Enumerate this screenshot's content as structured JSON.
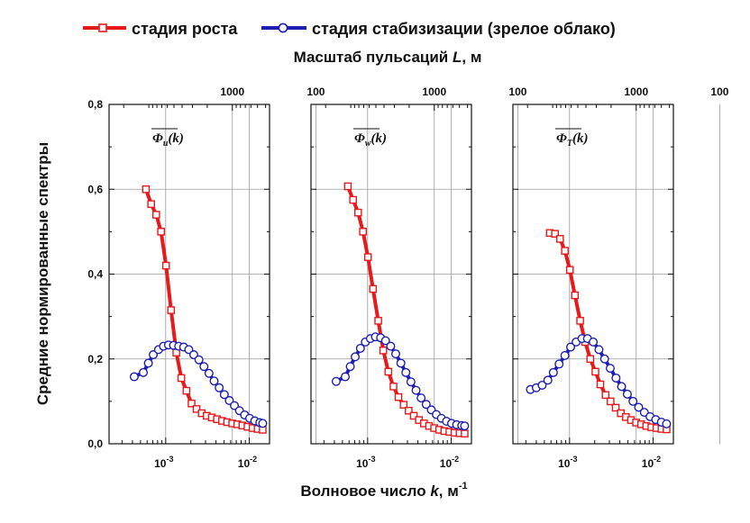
{
  "legend": [
    {
      "label": "стадия роста",
      "color": "#e8191b",
      "marker": "square"
    },
    {
      "label": "стадия стабизизации (зрелое облако)",
      "color": "#1f1fb4",
      "marker": "circle"
    }
  ],
  "top_axis_title": {
    "prefix": "Масштаб пульсаций ",
    "symbol": "L",
    "suffix": ", м"
  },
  "bottom_axis_title": {
    "prefix": "Волновое число ",
    "symbol": "k",
    "suffix": ", м",
    "sup": "-1"
  },
  "y_axis_title": "Средние нормированные спектры",
  "y_tick_labels": [
    "0,0",
    "0,2",
    "0,4",
    "0,6",
    "0,8"
  ],
  "top_tick_labels": [
    "1000",
    "100"
  ],
  "bottom_tick_labels": [
    {
      "base": "10",
      "exp": "-3"
    },
    {
      "base": "10",
      "exp": "-2"
    }
  ],
  "chart_data": [
    {
      "type": "line",
      "label": {
        "symbol": "Φ",
        "sub": "u",
        "arg": "(k)"
      },
      "xscale": "log",
      "xlim": [
        0.00021,
        0.0175
      ],
      "ylim": [
        0,
        0.8
      ],
      "grid": true,
      "series": [
        {
          "name": "стадия роста",
          "color": "#e8191b",
          "x": [
            0.00058,
            0.00067,
            0.00077,
            0.00088,
            0.00101,
            0.00116,
            0.00134,
            0.00154,
            0.00177,
            0.00204,
            0.00234,
            0.0027,
            0.0031,
            0.00357,
            0.00411,
            0.00473,
            0.00544,
            0.00626,
            0.0072,
            0.00828,
            0.00953,
            0.01096,
            0.01261,
            0.0145
          ],
          "y": [
            0.6,
            0.565,
            0.54,
            0.5,
            0.42,
            0.315,
            0.215,
            0.155,
            0.125,
            0.095,
            0.082,
            0.072,
            0.066,
            0.062,
            0.058,
            0.054,
            0.051,
            0.048,
            0.046,
            0.043,
            0.04,
            0.037,
            0.035,
            0.033
          ]
        },
        {
          "name": "стадия стабизизации (зрелое облако)",
          "color": "#1f1fb4",
          "x": [
            0.00042,
            0.00054,
            0.00062,
            0.00071,
            0.00082,
            0.00094,
            0.00108,
            0.00124,
            0.00143,
            0.00164,
            0.00189,
            0.00217,
            0.0025,
            0.00287,
            0.0033,
            0.0038,
            0.00437,
            0.00503,
            0.00578,
            0.00665,
            0.00765,
            0.0088,
            0.01012,
            0.01164,
            0.01339,
            0.0145
          ],
          "y": [
            0.158,
            0.168,
            0.19,
            0.21,
            0.222,
            0.23,
            0.233,
            0.232,
            0.23,
            0.228,
            0.222,
            0.21,
            0.198,
            0.182,
            0.166,
            0.148,
            0.132,
            0.116,
            0.102,
            0.09,
            0.078,
            0.068,
            0.06,
            0.054,
            0.05,
            0.048
          ]
        }
      ]
    },
    {
      "type": "line",
      "label": {
        "symbol": "Φ",
        "sub": "w",
        "arg": "(k)"
      },
      "xscale": "log",
      "xlim": [
        0.00021,
        0.0175
      ],
      "ylim": [
        0,
        0.8
      ],
      "grid": true,
      "series": [
        {
          "name": "стадия роста",
          "color": "#e8191b",
          "x": [
            0.00058,
            0.00067,
            0.00077,
            0.00088,
            0.00101,
            0.00116,
            0.00134,
            0.00154,
            0.00177,
            0.00204,
            0.00234,
            0.0027,
            0.0031,
            0.00357,
            0.00411,
            0.00473,
            0.00544,
            0.00626,
            0.0072,
            0.00828,
            0.00953,
            0.01096,
            0.01261,
            0.0145
          ],
          "y": [
            0.607,
            0.575,
            0.545,
            0.5,
            0.44,
            0.365,
            0.29,
            0.22,
            0.17,
            0.135,
            0.11,
            0.092,
            0.078,
            0.066,
            0.056,
            0.048,
            0.042,
            0.037,
            0.033,
            0.03,
            0.028,
            0.026,
            0.025,
            0.024
          ]
        },
        {
          "name": "стадия стабизизации (зрелое облако)",
          "color": "#1f1fb4",
          "x": [
            0.00042,
            0.00054,
            0.00062,
            0.00071,
            0.00082,
            0.00094,
            0.00108,
            0.00124,
            0.00143,
            0.00164,
            0.00189,
            0.00217,
            0.0025,
            0.00287,
            0.0033,
            0.0038,
            0.00437,
            0.00503,
            0.00578,
            0.00665,
            0.00765,
            0.0088,
            0.01012,
            0.01164,
            0.01339,
            0.0145
          ],
          "y": [
            0.147,
            0.158,
            0.182,
            0.205,
            0.225,
            0.24,
            0.248,
            0.252,
            0.25,
            0.243,
            0.23,
            0.212,
            0.19,
            0.168,
            0.146,
            0.126,
            0.108,
            0.093,
            0.08,
            0.069,
            0.06,
            0.053,
            0.048,
            0.045,
            0.043,
            0.042
          ]
        }
      ]
    },
    {
      "type": "line",
      "label": {
        "symbol": "Φ",
        "sub": "T",
        "arg": "(k)"
      },
      "xscale": "log",
      "xlim": [
        0.00021,
        0.0175
      ],
      "ylim": [
        0,
        0.8
      ],
      "grid": true,
      "series": [
        {
          "name": "стадия роста",
          "color": "#e8191b",
          "x": [
            0.00058,
            0.00067,
            0.00077,
            0.00088,
            0.00101,
            0.00116,
            0.00134,
            0.00154,
            0.00177,
            0.00204,
            0.00234,
            0.0027,
            0.0031,
            0.00357,
            0.00411,
            0.00473,
            0.00544,
            0.00626,
            0.0072,
            0.00828,
            0.00953,
            0.01096,
            0.01261,
            0.0145
          ],
          "y": [
            0.497,
            0.495,
            0.483,
            0.455,
            0.41,
            0.35,
            0.29,
            0.24,
            0.2,
            0.17,
            0.14,
            0.115,
            0.1,
            0.085,
            0.072,
            0.063,
            0.056,
            0.05,
            0.046,
            0.042,
            0.039,
            0.037,
            0.035,
            0.034
          ]
        },
        {
          "name": "стадия стабизизации (зрелое облако)",
          "color": "#1f1fb4",
          "x": [
            0.00034,
            0.0004,
            0.00047,
            0.00055,
            0.00064,
            0.00075,
            0.00088,
            0.00103,
            0.0012,
            0.00141,
            0.00164,
            0.00192,
            0.00225,
            0.00263,
            0.00307,
            0.0036,
            0.0042,
            0.00492,
            0.00575,
            0.00672,
            0.00786,
            0.0092,
            0.01075,
            0.01258,
            0.0145
          ],
          "y": [
            0.128,
            0.132,
            0.138,
            0.15,
            0.168,
            0.188,
            0.208,
            0.228,
            0.24,
            0.248,
            0.248,
            0.24,
            0.222,
            0.2,
            0.178,
            0.155,
            0.135,
            0.117,
            0.1,
            0.086,
            0.074,
            0.064,
            0.057,
            0.051,
            0.047
          ]
        }
      ]
    }
  ]
}
